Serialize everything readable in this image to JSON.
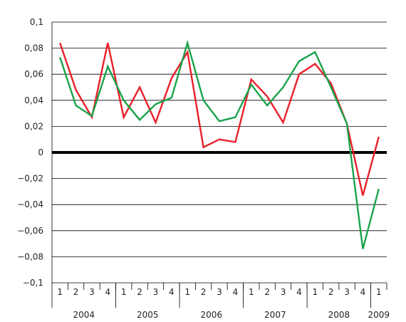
{
  "chart_data": {
    "type": "line",
    "title": "",
    "xlabel": "",
    "ylabel": "",
    "ylim": [
      -0.1,
      0.1
    ],
    "grid": true,
    "legend": "none",
    "y_ticks": [
      {
        "value": 0.1,
        "label": "0,1"
      },
      {
        "value": 0.08,
        "label": "0,08"
      },
      {
        "value": 0.06,
        "label": "0,06"
      },
      {
        "value": 0.04,
        "label": "0,04"
      },
      {
        "value": 0.02,
        "label": "0,02"
      },
      {
        "value": 0,
        "label": "0"
      },
      {
        "value": -0.02,
        "label": "−0,02"
      },
      {
        "value": -0.04,
        "label": "−0,04"
      },
      {
        "value": -0.06,
        "label": "−0,06"
      },
      {
        "value": -0.08,
        "label": "−0,08"
      },
      {
        "value": -0.1,
        "label": "−0,1"
      }
    ],
    "categories": [
      "1",
      "2",
      "3",
      "4",
      "1",
      "2",
      "3",
      "4",
      "1",
      "2",
      "3",
      "4",
      "1",
      "2",
      "3",
      "4",
      "1",
      "2",
      "3",
      "4",
      "1"
    ],
    "years": [
      {
        "label": "2004",
        "start": 0,
        "count": 4
      },
      {
        "label": "2005",
        "start": 4,
        "count": 4
      },
      {
        "label": "2006",
        "start": 8,
        "count": 4
      },
      {
        "label": "2007",
        "start": 12,
        "count": 4
      },
      {
        "label": "2008",
        "start": 16,
        "count": 4
      },
      {
        "label": "2009",
        "start": 20,
        "count": 1
      }
    ],
    "series": [
      {
        "color": "#e8202a",
        "values": [
          0.084,
          0.048,
          0.027,
          0.084,
          0.027,
          0.05,
          0.023,
          0.057,
          0.077,
          0.004,
          0.01,
          0.008,
          0.056,
          0.043,
          0.023,
          0.06,
          0.068,
          0.053,
          0.022,
          -0.033,
          0.012
        ]
      },
      {
        "color": "#1aa34a",
        "values": [
          0.073,
          0.036,
          0.028,
          0.066,
          0.04,
          0.025,
          0.037,
          0.042,
          0.084,
          0.04,
          0.024,
          0.027,
          0.052,
          0.036,
          0.05,
          0.07,
          0.077,
          0.05,
          0.022,
          -0.074,
          -0.028
        ]
      }
    ]
  }
}
